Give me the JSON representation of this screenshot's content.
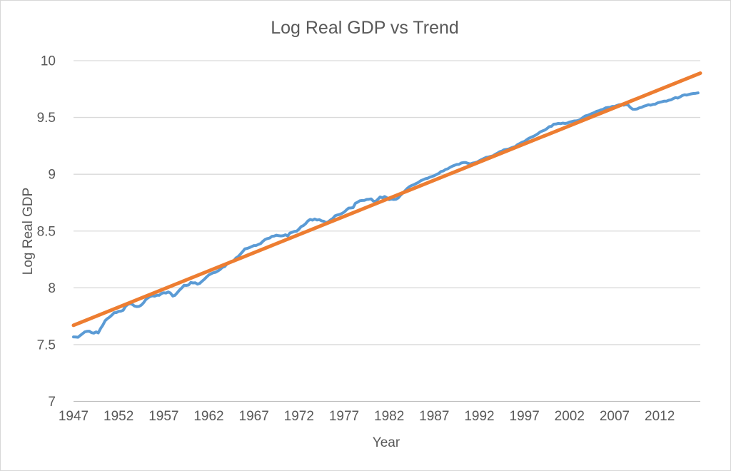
{
  "chart_data": {
    "type": "line",
    "title": "Log Real GDP vs Trend",
    "xlabel": "Year",
    "ylabel": "Log Real GDP",
    "xlim": [
      1947,
      2016.5
    ],
    "ylim": [
      7,
      10
    ],
    "grid": true,
    "legend": "none",
    "y_ticks": [
      7,
      7.5,
      8,
      8.5,
      9,
      9.5,
      10
    ],
    "y_tick_labels": [
      "7",
      "7.5",
      "8",
      "8.5",
      "9",
      "9.5",
      "10"
    ],
    "x_ticks": [
      1947,
      1952,
      1957,
      1962,
      1967,
      1972,
      1977,
      1982,
      1987,
      1992,
      1997,
      2002,
      2007,
      2012
    ],
    "x_tick_labels": [
      "1947",
      "1952",
      "1957",
      "1962",
      "1967",
      "1972",
      "1977",
      "1982",
      "1987",
      "1992",
      "1997",
      "2002",
      "2007",
      "2012"
    ],
    "series": [
      {
        "name": "Log Real GDP",
        "color": "#5B9BD5",
        "stroke_width": 4,
        "x_start": 1947.0,
        "x_step": 0.25,
        "values": [
          7.568,
          7.567,
          7.565,
          7.581,
          7.596,
          7.612,
          7.617,
          7.618,
          7.605,
          7.601,
          7.612,
          7.603,
          7.642,
          7.672,
          7.71,
          7.729,
          7.742,
          7.76,
          7.78,
          7.782,
          7.793,
          7.795,
          7.802,
          7.835,
          7.853,
          7.861,
          7.855,
          7.84,
          7.835,
          7.836,
          7.847,
          7.867,
          7.895,
          7.911,
          7.924,
          7.93,
          7.927,
          7.935,
          7.934,
          7.95,
          7.957,
          7.954,
          7.964,
          7.954,
          7.928,
          7.934,
          7.957,
          7.98,
          7.999,
          8.022,
          8.021,
          8.025,
          8.047,
          8.043,
          8.045,
          8.033,
          8.04,
          8.058,
          8.075,
          8.095,
          8.113,
          8.124,
          8.133,
          8.137,
          8.148,
          8.161,
          8.18,
          8.187,
          8.209,
          8.22,
          8.234,
          8.237,
          8.262,
          8.275,
          8.296,
          8.319,
          8.343,
          8.347,
          8.354,
          8.363,
          8.372,
          8.373,
          8.382,
          8.39,
          8.41,
          8.426,
          8.434,
          8.438,
          8.453,
          8.456,
          8.463,
          8.459,
          8.457,
          8.459,
          8.467,
          8.457,
          8.483,
          8.489,
          8.497,
          8.499,
          8.517,
          8.54,
          8.549,
          8.566,
          8.59,
          8.602,
          8.596,
          8.606,
          8.597,
          8.6,
          8.59,
          8.586,
          8.574,
          8.582,
          8.598,
          8.611,
          8.634,
          8.641,
          8.646,
          8.654,
          8.666,
          8.685,
          8.702,
          8.703,
          8.706,
          8.744,
          8.754,
          8.767,
          8.769,
          8.77,
          8.778,
          8.78,
          8.783,
          8.763,
          8.761,
          8.78,
          8.8,
          8.793,
          8.804,
          8.793,
          8.776,
          8.781,
          8.778,
          8.779,
          8.791,
          8.814,
          8.833,
          8.854,
          8.874,
          8.891,
          8.901,
          8.909,
          8.919,
          8.928,
          8.943,
          8.951,
          8.96,
          8.964,
          8.974,
          8.98,
          8.987,
          8.998,
          9.007,
          9.024,
          9.029,
          9.042,
          9.048,
          9.061,
          9.071,
          9.079,
          9.086,
          9.088,
          9.099,
          9.103,
          9.103,
          9.095,
          9.09,
          9.098,
          9.102,
          9.107,
          9.119,
          9.13,
          9.139,
          9.149,
          9.151,
          9.157,
          9.162,
          9.175,
          9.185,
          9.198,
          9.204,
          9.216,
          9.219,
          9.222,
          9.231,
          9.238,
          9.245,
          9.262,
          9.271,
          9.282,
          9.289,
          9.304,
          9.317,
          9.325,
          9.334,
          9.344,
          9.357,
          9.373,
          9.381,
          9.389,
          9.402,
          9.419,
          9.422,
          9.441,
          9.442,
          9.448,
          9.445,
          9.45,
          9.447,
          9.45,
          9.459,
          9.464,
          9.469,
          9.47,
          9.475,
          9.484,
          9.501,
          9.513,
          9.518,
          9.526,
          9.535,
          9.543,
          9.554,
          9.559,
          9.567,
          9.573,
          9.585,
          9.588,
          9.589,
          9.597,
          9.597,
          9.605,
          9.612,
          9.615,
          9.608,
          9.613,
          9.609,
          9.587,
          9.573,
          9.572,
          9.575,
          9.585,
          9.589,
          9.599,
          9.605,
          9.612,
          9.608,
          9.615,
          9.617,
          9.628,
          9.634,
          9.638,
          9.644,
          9.644,
          9.651,
          9.655,
          9.666,
          9.675,
          9.67,
          9.681,
          9.693,
          9.699,
          9.697,
          9.703,
          9.708,
          9.711,
          9.713,
          9.716
        ]
      },
      {
        "name": "Trend",
        "color": "#ED7D31",
        "stroke_width": 5,
        "x": [
          1947.0,
          2016.5
        ],
        "values": [
          7.67,
          9.89
        ]
      }
    ],
    "colors": {
      "gridline": "#D9D9D9",
      "axis_line": "#BFBFBF",
      "text": "#595959",
      "frame_border": "#D7D7D7",
      "background": "#FFFFFF"
    }
  }
}
